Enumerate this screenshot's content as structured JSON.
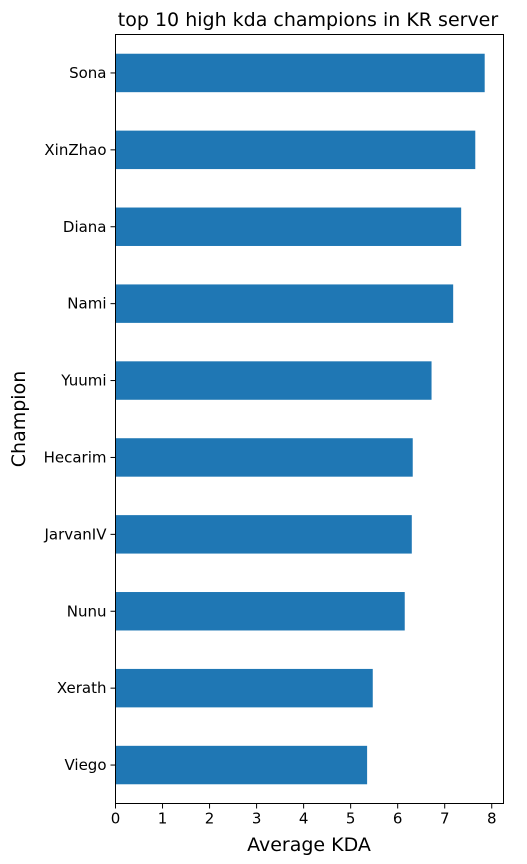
{
  "chart_data": {
    "type": "bar",
    "orientation": "horizontal",
    "title": "top 10 high kda champions in KR server",
    "xlabel": "Average KDA",
    "ylabel": "Champion",
    "categories": [
      "Sona",
      "XinZhao",
      "Diana",
      "Nami",
      "Yuumi",
      "Hecarim",
      "JarvanIV",
      "Nunu",
      "Xerath",
      "Viego"
    ],
    "values": [
      7.85,
      7.65,
      7.35,
      7.18,
      6.72,
      6.32,
      6.3,
      6.15,
      5.47,
      5.35
    ],
    "xlim": [
      0,
      8.25
    ],
    "xticks": [
      "0",
      "1",
      "2",
      "3",
      "4",
      "5",
      "6",
      "7",
      "8"
    ],
    "bar_color": "#1f77b4",
    "grid": false,
    "legend": "none"
  }
}
